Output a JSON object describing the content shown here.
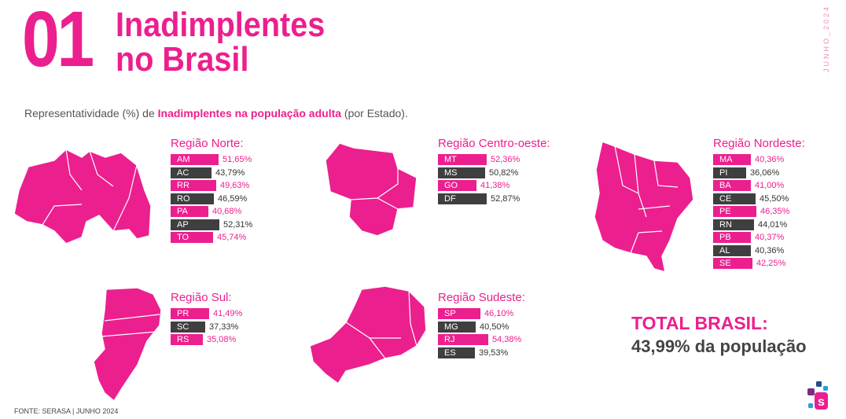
{
  "header": {
    "number": "01",
    "title_line1": "Inadimplentes",
    "title_line2": "no Brasil",
    "side_date": "JUNHO_2024"
  },
  "subtitle": {
    "prefix": "Representatividade (%) de ",
    "highlight": "Inadimplentes na população adulta",
    "suffix": " (por Estado)."
  },
  "colors": {
    "accent": "#ec1f8e",
    "dark": "#3f3f3f"
  },
  "chart_data": [
    {
      "type": "bar",
      "title": "Região Norte:",
      "categories": [
        "AM",
        "AC",
        "RR",
        "RO",
        "PA",
        "AP",
        "TO"
      ],
      "values": [
        51.65,
        43.79,
        49.63,
        46.59,
        40.68,
        52.31,
        45.74
      ],
      "labels": [
        "51,65%",
        "43,79%",
        "49,63%",
        "46,59%",
        "40,68%",
        "52,31%",
        "45,74%"
      ],
      "colors": [
        "pink",
        "dark",
        "pink",
        "dark",
        "pink",
        "dark",
        "pink"
      ]
    },
    {
      "type": "bar",
      "title": "Região Centro-oeste:",
      "categories": [
        "MT",
        "MS",
        "GO",
        "DF"
      ],
      "values": [
        52.36,
        50.82,
        41.38,
        52.87
      ],
      "labels": [
        "52,36%",
        "50,82%",
        "41,38%",
        "52,87%"
      ],
      "colors": [
        "pink",
        "dark",
        "pink",
        "dark"
      ]
    },
    {
      "type": "bar",
      "title": "Região Nordeste:",
      "categories": [
        "MA",
        "PI",
        "BA",
        "CE",
        "PE",
        "RN",
        "PB",
        "AL",
        "SE"
      ],
      "values": [
        40.36,
        36.06,
        41.0,
        45.5,
        46.35,
        44.01,
        40.37,
        40.36,
        42.25
      ],
      "labels": [
        "40,36%",
        "36,06%",
        "41,00%",
        "45,50%",
        "46,35%",
        "44,01%",
        "40,37%",
        "40,36%",
        "42,25%"
      ],
      "colors": [
        "pink",
        "dark",
        "pink",
        "dark",
        "pink",
        "dark",
        "pink",
        "dark",
        "pink"
      ]
    },
    {
      "type": "bar",
      "title": "Região Sul:",
      "categories": [
        "PR",
        "SC",
        "RS"
      ],
      "values": [
        41.49,
        37.33,
        35.08
      ],
      "labels": [
        "41,49%",
        "37,33%",
        "35,08%"
      ],
      "colors": [
        "pink",
        "dark",
        "pink"
      ]
    },
    {
      "type": "bar",
      "title": "Região Sudeste:",
      "categories": [
        "SP",
        "MG",
        "RJ",
        "ES"
      ],
      "values": [
        46.1,
        40.5,
        54.38,
        39.53
      ],
      "labels": [
        "46,10%",
        "40,50%",
        "54,38%",
        "39,53%"
      ],
      "colors": [
        "pink",
        "dark",
        "pink",
        "dark"
      ]
    }
  ],
  "total": {
    "label": "TOTAL BRASIL:",
    "value": "43,99% da população"
  },
  "source": "FONTE: SERASA | JUNHO 2024"
}
